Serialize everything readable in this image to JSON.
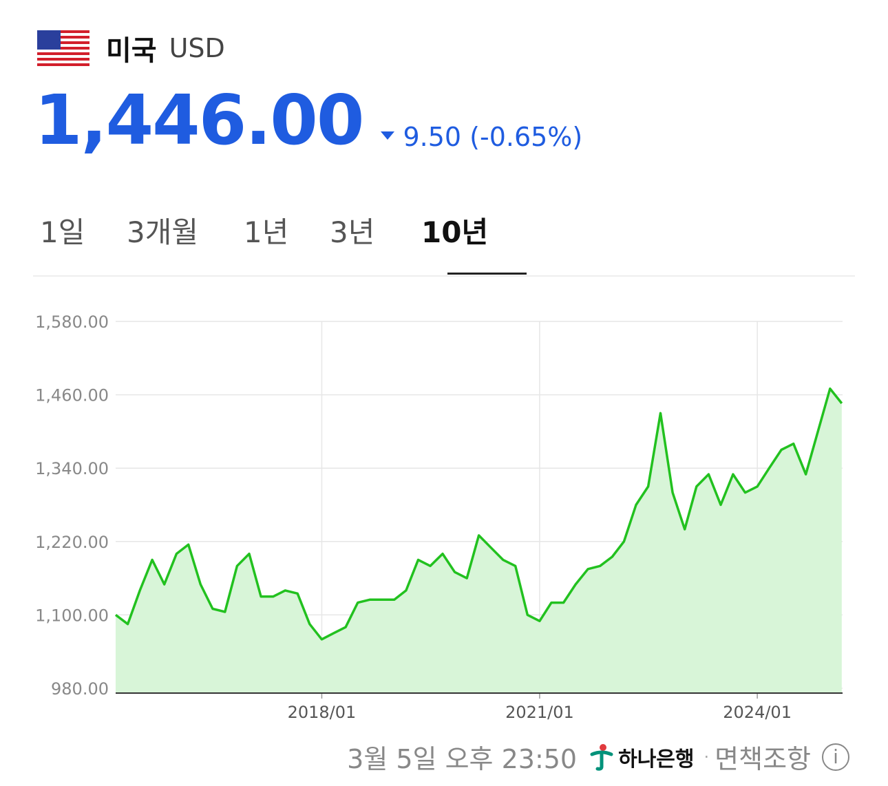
{
  "header": {
    "country": "미국",
    "currency_code": "USD",
    "flag_icon": "us-flag-icon"
  },
  "quote": {
    "price": "1,446.00",
    "change": "9.50 (-0.65%)",
    "direction": "down",
    "color": "#1f5ce0"
  },
  "tabs": [
    {
      "label": "1일",
      "active": false
    },
    {
      "label": "3개월",
      "active": false
    },
    {
      "label": "1년",
      "active": false
    },
    {
      "label": "3년",
      "active": false
    },
    {
      "label": "10년",
      "active": true
    }
  ],
  "footer": {
    "timestamp": "3월 5일 오후 23:50",
    "bank": "하나은행",
    "separator": "·",
    "disclaimer": "면책조항",
    "info_icon": "info-icon"
  },
  "chart_data": {
    "type": "area",
    "title": "",
    "xlabel": "",
    "ylabel": "",
    "ylim": [
      980,
      1600
    ],
    "yticks": [
      "1,580.00",
      "1,460.00",
      "1,340.00",
      "1,220.00",
      "1,100.00",
      "980.00"
    ],
    "ytick_values": [
      1580,
      1460,
      1340,
      1220,
      1100,
      980
    ],
    "xticks": [
      "2018/01",
      "2021/01",
      "2024/01"
    ],
    "xtick_values": [
      "2018-01-01",
      "2021-01-01",
      "2024-01-01"
    ],
    "xlim": [
      "2015-03-01",
      "2025-03-05"
    ],
    "grid": true,
    "line_color": "#22c11f",
    "fill_color": "#d8f5d8",
    "series": [
      {
        "x": [
          "2015-03",
          "2015-05",
          "2015-07",
          "2015-09",
          "2015-11",
          "2016-01",
          "2016-03",
          "2016-05",
          "2016-07",
          "2016-09",
          "2016-11",
          "2017-01",
          "2017-03",
          "2017-05",
          "2017-07",
          "2017-09",
          "2017-11",
          "2018-01",
          "2018-03",
          "2018-05",
          "2018-07",
          "2018-09",
          "2018-11",
          "2019-01",
          "2019-03",
          "2019-05",
          "2019-07",
          "2019-09",
          "2019-11",
          "2020-01",
          "2020-03",
          "2020-05",
          "2020-07",
          "2020-09",
          "2020-11",
          "2021-01",
          "2021-03",
          "2021-05",
          "2021-07",
          "2021-09",
          "2021-11",
          "2022-01",
          "2022-03",
          "2022-05",
          "2022-07",
          "2022-09",
          "2022-11",
          "2023-01",
          "2023-03",
          "2023-05",
          "2023-07",
          "2023-09",
          "2023-11",
          "2024-01",
          "2024-03",
          "2024-05",
          "2024-07",
          "2024-09",
          "2024-11",
          "2025-01",
          "2025-03"
        ],
        "values": [
          1100,
          1085,
          1140,
          1190,
          1150,
          1200,
          1215,
          1150,
          1110,
          1105,
          1180,
          1200,
          1130,
          1130,
          1140,
          1135,
          1085,
          1060,
          1070,
          1080,
          1120,
          1125,
          1125,
          1125,
          1140,
          1190,
          1180,
          1200,
          1170,
          1160,
          1230,
          1210,
          1190,
          1180,
          1100,
          1090,
          1120,
          1120,
          1150,
          1175,
          1180,
          1195,
          1220,
          1280,
          1310,
          1430,
          1300,
          1240,
          1310,
          1330,
          1280,
          1330,
          1300,
          1310,
          1340,
          1370,
          1380,
          1330,
          1400,
          1470,
          1446
        ]
      }
    ]
  }
}
